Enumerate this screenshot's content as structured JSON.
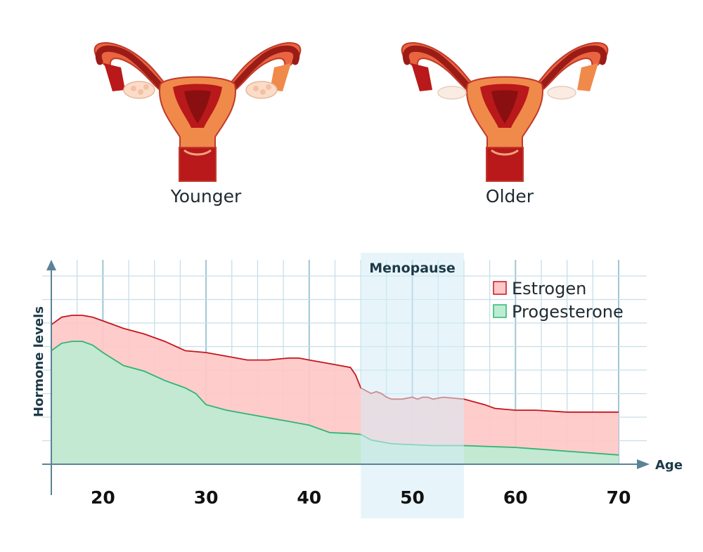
{
  "illustrations": [
    {
      "label": "Younger"
    },
    {
      "label": "Older"
    }
  ],
  "chart_data": {
    "type": "area",
    "xlabel": "Age",
    "ylabel": "Hormone levels",
    "xlim": [
      15,
      70
    ],
    "ylim": [
      0,
      10
    ],
    "x_ticks": [
      20,
      30,
      40,
      50,
      60,
      70
    ],
    "grid": true,
    "legend_position": "top-right",
    "shaded_region": {
      "label": "Menopause",
      "x_range": [
        45,
        55
      ]
    },
    "series": [
      {
        "name": "Estrogen",
        "color": "#ffc7c7",
        "line_color": "#c4161c",
        "x": [
          15,
          16,
          17,
          18,
          19,
          20,
          22,
          24,
          26,
          28,
          30,
          32,
          34,
          36,
          38,
          39,
          40,
          42,
          44,
          44.5,
          45,
          46,
          46.5,
          47,
          47.5,
          48,
          49,
          50,
          50.5,
          51,
          51.5,
          52,
          53,
          55,
          57,
          58,
          60,
          62,
          65,
          67,
          70
        ],
        "values": [
          7.5,
          7.9,
          8.0,
          8.0,
          7.9,
          7.7,
          7.3,
          7.0,
          6.6,
          6.1,
          6.0,
          5.8,
          5.6,
          5.6,
          5.7,
          5.7,
          5.6,
          5.4,
          5.2,
          4.8,
          4.1,
          3.8,
          3.9,
          3.8,
          3.6,
          3.5,
          3.5,
          3.6,
          3.5,
          3.6,
          3.6,
          3.5,
          3.6,
          3.5,
          3.2,
          3.0,
          2.9,
          2.9,
          2.8,
          2.8,
          2.8
        ]
      },
      {
        "name": "Progesterone",
        "color": "#bdecd3",
        "line_color": "#2fb574",
        "x": [
          15,
          16,
          17,
          18,
          19,
          20,
          22,
          24,
          26,
          28,
          29,
          30,
          32,
          34,
          36,
          38,
          40,
          42,
          44,
          45,
          46,
          48,
          52,
          55,
          60,
          65,
          70
        ],
        "values": [
          6.1,
          6.5,
          6.6,
          6.6,
          6.4,
          6.0,
          5.3,
          5.0,
          4.5,
          4.1,
          3.8,
          3.2,
          2.9,
          2.7,
          2.5,
          2.3,
          2.1,
          1.7,
          1.65,
          1.6,
          1.3,
          1.1,
          1.0,
          1.0,
          0.9,
          0.7,
          0.5
        ]
      }
    ]
  }
}
